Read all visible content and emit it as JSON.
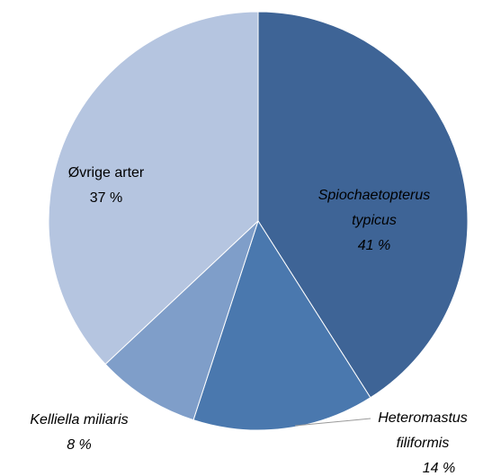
{
  "chart_data": {
    "type": "pie",
    "categories": [
      "Spiochaetopterus typicus",
      "Heteromastus filiformis",
      "Kelliella miliaris",
      "Øvrige arter"
    ],
    "values": [
      41,
      14,
      8,
      37
    ],
    "value_labels": [
      "41 %",
      "14 %",
      "8 %",
      "37 %"
    ],
    "colors": [
      "#3e6496",
      "#4a78ae",
      "#7f9ec9",
      "#b5c5e0"
    ]
  }
}
